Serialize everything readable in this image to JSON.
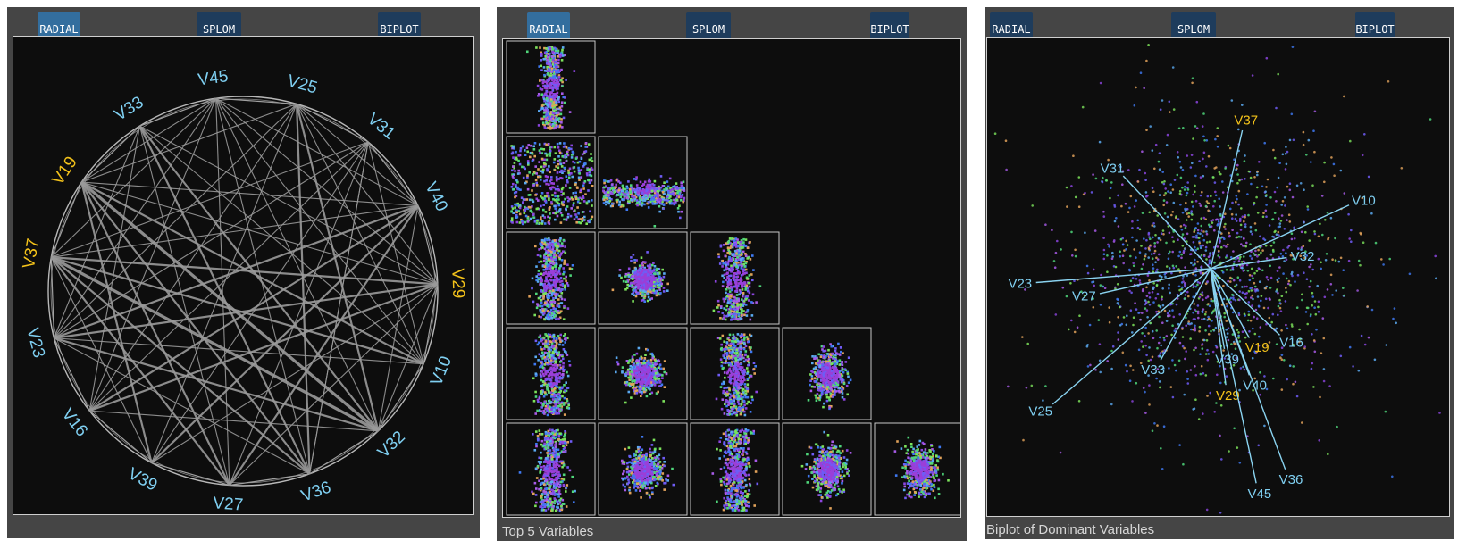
{
  "tabs": {
    "radial": "RADIAL",
    "splom": "SPLOM",
    "biplot": "BIPLOT"
  },
  "colors": {
    "normal_label": "#7fcff1",
    "highlight_label": "#f3c21a",
    "edge": "#9a9a9a",
    "axis": "#8ad3f0"
  },
  "radial": {
    "variables": [
      {
        "name": "V45",
        "hl": false
      },
      {
        "name": "V25",
        "hl": false
      },
      {
        "name": "V31",
        "hl": false
      },
      {
        "name": "V40",
        "hl": false
      },
      {
        "name": "V29",
        "hl": true
      },
      {
        "name": "V10",
        "hl": false
      },
      {
        "name": "V32",
        "hl": false
      },
      {
        "name": "V36",
        "hl": false
      },
      {
        "name": "V27",
        "hl": false
      },
      {
        "name": "V39",
        "hl": false
      },
      {
        "name": "V16",
        "hl": false
      },
      {
        "name": "V23",
        "hl": false
      },
      {
        "name": "V37",
        "hl": true
      },
      {
        "name": "V19",
        "hl": true
      },
      {
        "name": "V33",
        "hl": false
      }
    ],
    "edges": [
      [
        "V37",
        "V29",
        2
      ],
      [
        "V37",
        "V10",
        2
      ],
      [
        "V37",
        "V32",
        3
      ],
      [
        "V37",
        "V36",
        2
      ],
      [
        "V37",
        "V27",
        2
      ],
      [
        "V37",
        "V40",
        1
      ],
      [
        "V37",
        "V45",
        1
      ],
      [
        "V37",
        "V31",
        1
      ],
      [
        "V37",
        "V39",
        1
      ],
      [
        "V19",
        "V32",
        3
      ],
      [
        "V19",
        "V36",
        2
      ],
      [
        "V19",
        "V27",
        2
      ],
      [
        "V19",
        "V39",
        2
      ],
      [
        "V19",
        "V10",
        2
      ],
      [
        "V19",
        "V29",
        1
      ],
      [
        "V19",
        "V25",
        1
      ],
      [
        "V19",
        "V40",
        1
      ],
      [
        "V19",
        "V45",
        1
      ],
      [
        "V33",
        "V36",
        2
      ],
      [
        "V33",
        "V32",
        2
      ],
      [
        "V33",
        "V10",
        1
      ],
      [
        "V33",
        "V29",
        1
      ],
      [
        "V33",
        "V16",
        1
      ],
      [
        "V33",
        "V23",
        1
      ],
      [
        "V33",
        "V27",
        1
      ],
      [
        "V23",
        "V29",
        2
      ],
      [
        "V23",
        "V40",
        2
      ],
      [
        "V23",
        "V10",
        1
      ],
      [
        "V23",
        "V32",
        2
      ],
      [
        "V23",
        "V31",
        1
      ],
      [
        "V23",
        "V36",
        1
      ],
      [
        "V23",
        "V25",
        1
      ],
      [
        "V16",
        "V29",
        2
      ],
      [
        "V16",
        "V40",
        2
      ],
      [
        "V16",
        "V31",
        1
      ],
      [
        "V16",
        "V32",
        1
      ],
      [
        "V16",
        "V25",
        1
      ],
      [
        "V16",
        "V45",
        1
      ],
      [
        "V39",
        "V40",
        2
      ],
      [
        "V39",
        "V29",
        1
      ],
      [
        "V39",
        "V31",
        1
      ],
      [
        "V39",
        "V25",
        1
      ],
      [
        "V27",
        "V40",
        2
      ],
      [
        "V27",
        "V31",
        1
      ],
      [
        "V27",
        "V45",
        1
      ],
      [
        "V27",
        "V29",
        1
      ],
      [
        "V36",
        "V25",
        2
      ],
      [
        "V36",
        "V45",
        1
      ],
      [
        "V36",
        "V31",
        1
      ],
      [
        "V32",
        "V25",
        2
      ],
      [
        "V32",
        "V45",
        1
      ],
      [
        "V32",
        "V40",
        1
      ],
      [
        "V32",
        "V29",
        1
      ],
      [
        "V10",
        "V25",
        1
      ],
      [
        "V10",
        "V45",
        1
      ],
      [
        "V10",
        "V31",
        1
      ],
      [
        "V29",
        "V45",
        1
      ],
      [
        "V29",
        "V25",
        1
      ],
      [
        "V40",
        "V45",
        1
      ],
      [
        "V40",
        "V25",
        1
      ],
      [
        "V31",
        "V36",
        1
      ],
      [
        "V45",
        "V23",
        1
      ]
    ]
  },
  "splom": {
    "caption": "Top 5 Variables",
    "cells": [
      {
        "r": 0,
        "c": 0,
        "shape": "vband",
        "sx": 0.13,
        "sy": 0.42
      },
      {
        "r": 1,
        "c": 0,
        "shape": "uniform",
        "sx": 0.46,
        "sy": 0.46
      },
      {
        "r": 1,
        "c": 1,
        "shape": "hband",
        "sx": 0.46,
        "sy": 0.14
      },
      {
        "r": 2,
        "c": 0,
        "shape": "vband",
        "sx": 0.16,
        "sy": 0.46
      },
      {
        "r": 2,
        "c": 1,
        "shape": "blob",
        "sx": 0.18,
        "sy": 0.12
      },
      {
        "r": 2,
        "c": 2,
        "shape": "vband",
        "sx": 0.16,
        "sy": 0.44
      },
      {
        "r": 3,
        "c": 0,
        "shape": "vband",
        "sx": 0.17,
        "sy": 0.46
      },
      {
        "r": 3,
        "c": 1,
        "shape": "blob",
        "sx": 0.18,
        "sy": 0.13
      },
      {
        "r": 3,
        "c": 2,
        "shape": "vband",
        "sx": 0.16,
        "sy": 0.46
      },
      {
        "r": 3,
        "c": 3,
        "shape": "blob",
        "sx": 0.17,
        "sy": 0.17
      },
      {
        "r": 4,
        "c": 0,
        "shape": "vband",
        "sx": 0.17,
        "sy": 0.46
      },
      {
        "r": 4,
        "c": 1,
        "shape": "blob",
        "sx": 0.19,
        "sy": 0.14
      },
      {
        "r": 4,
        "c": 2,
        "shape": "vband",
        "sx": 0.16,
        "sy": 0.46
      },
      {
        "r": 4,
        "c": 3,
        "shape": "blob",
        "sx": 0.17,
        "sy": 0.17
      },
      {
        "r": 4,
        "c": 4,
        "shape": "blob",
        "sx": 0.17,
        "sy": 0.17
      }
    ]
  },
  "biplot": {
    "caption": "Biplot of Dominant Variables",
    "vectors": [
      {
        "name": "V37",
        "hl": true,
        "dx": 0.23,
        "dy": 1.0
      },
      {
        "name": "V10",
        "hl": false,
        "dx": 1.0,
        "dy": 0.46
      },
      {
        "name": "V31",
        "hl": false,
        "dx": -0.63,
        "dy": 0.67
      },
      {
        "name": "V32",
        "hl": false,
        "dx": 0.55,
        "dy": 0.08
      },
      {
        "name": "V23",
        "hl": false,
        "dx": -1.26,
        "dy": -0.1
      },
      {
        "name": "V27",
        "hl": false,
        "dx": -0.8,
        "dy": -0.18
      },
      {
        "name": "V16",
        "hl": false,
        "dx": 0.5,
        "dy": -0.48
      },
      {
        "name": "V19",
        "hl": true,
        "dx": 0.28,
        "dy": -0.5
      },
      {
        "name": "V39",
        "hl": false,
        "dx": 0.1,
        "dy": -0.58
      },
      {
        "name": "V33",
        "hl": false,
        "dx": -0.36,
        "dy": -0.66
      },
      {
        "name": "V40",
        "hl": false,
        "dx": 0.28,
        "dy": -0.77
      },
      {
        "name": "V29",
        "hl": true,
        "dx": 0.11,
        "dy": -0.84
      },
      {
        "name": "V25",
        "hl": false,
        "dx": -1.14,
        "dy": -0.98
      },
      {
        "name": "V36",
        "hl": false,
        "dx": 0.54,
        "dy": -1.45
      },
      {
        "name": "V45",
        "hl": false,
        "dx": 0.33,
        "dy": -1.55
      }
    ]
  },
  "point_palette": [
    "#6f5cf5",
    "#8c45df",
    "#3f79f2",
    "#4fd67a",
    "#7ce25b",
    "#a85be8",
    "#5aa9f0",
    "#e0a15a"
  ]
}
